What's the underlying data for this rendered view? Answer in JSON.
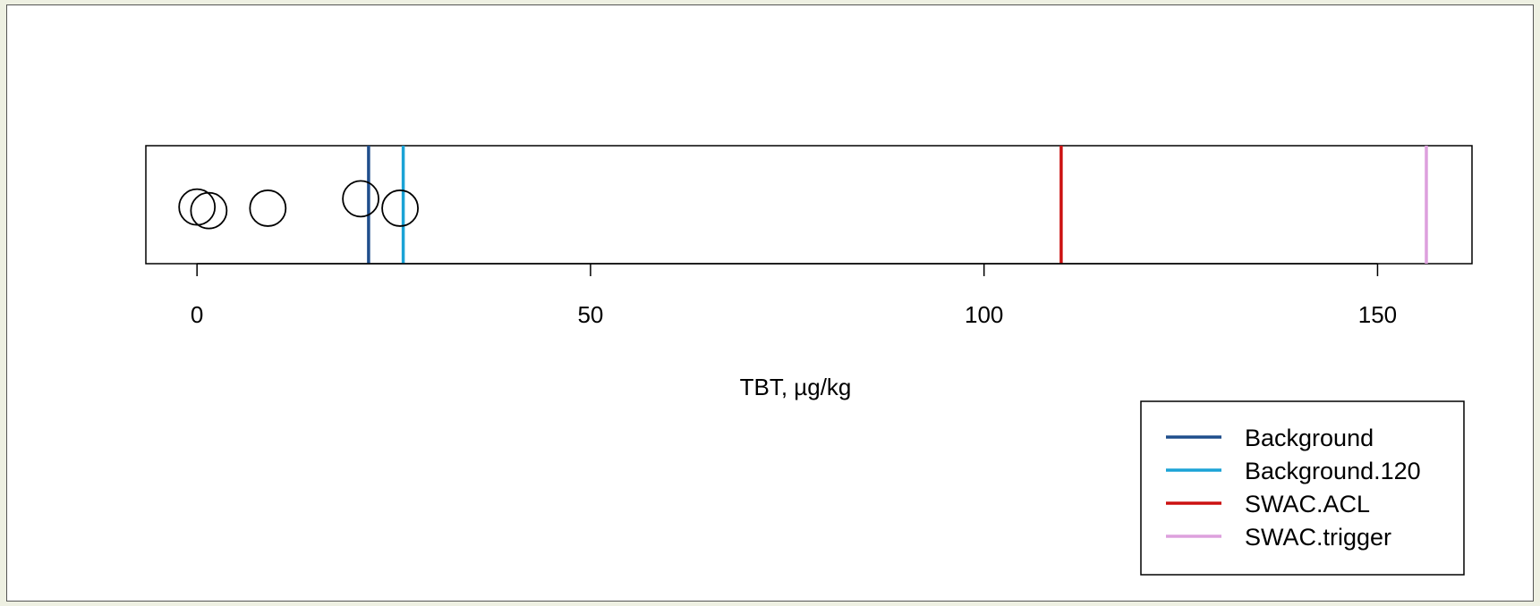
{
  "chart_data": {
    "type": "scatter",
    "title": "",
    "xlabel": "TBT, µg/kg",
    "ylabel": "",
    "xlim": [
      -6.5,
      162
    ],
    "xticks": [
      0,
      50,
      100,
      150
    ],
    "xtick_labels": [
      "0",
      "50",
      "100",
      "150"
    ],
    "grid": false,
    "points": [
      {
        "x": 0.0,
        "y": 0.48
      },
      {
        "x": 1.5,
        "y": 0.45
      },
      {
        "x": 9.0,
        "y": 0.47
      },
      {
        "x": 20.8,
        "y": 0.55
      },
      {
        "x": 25.8,
        "y": 0.47
      }
    ],
    "reference_lines": [
      {
        "name": "Background",
        "x": 21.8,
        "color": "#1f4e8c"
      },
      {
        "name": "Background.120",
        "x": 26.2,
        "color": "#1ba3d6"
      },
      {
        "name": "SWAC.ACL",
        "x": 109.8,
        "color": "#cc1111"
      },
      {
        "name": "SWAC.trigger",
        "x": 156.2,
        "color": "#dda0dd"
      }
    ],
    "legend_position": "bottom-right"
  }
}
